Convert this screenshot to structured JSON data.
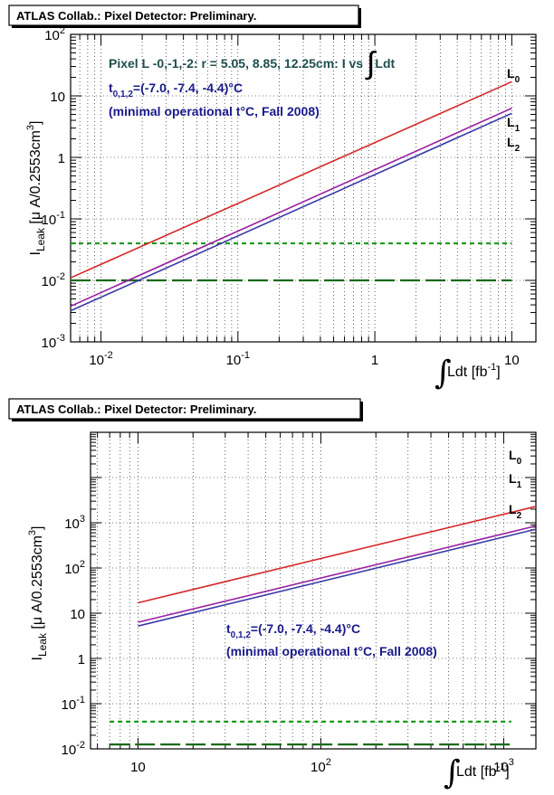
{
  "chart_data": [
    {
      "type": "line",
      "title": "ATLAS Collab.: Pixel Detector: Preliminary.",
      "annotation_line1": "Pixel L -0,-1,-2: r = 5.05, 8.85, 12.25cm: I vs",
      "annotation_line1_tail": "Ldt",
      "annotation_t_main": "t",
      "annotation_t_sub": "0,1,2",
      "annotation_t_rest": "=(-7.0, -7.4, -4.4)°C",
      "annotation_line3": "(minimal operational t°C, Fall 2008)",
      "ylabel_main": "I",
      "ylabel_sub": "Leak",
      "ylabel_rest": " [μ A/0.2553cm",
      "ylabel_sup": "3",
      "ylabel_close": "]",
      "xlabel_main": "Ldt [fb",
      "xlabel_sup": "-1",
      "xlabel_close": "]",
      "xscale": "log",
      "yscale": "log",
      "xlim": [
        0.006,
        15
      ],
      "ylim": [
        0.001,
        100
      ],
      "grid": true,
      "x_ticks": [
        {
          "value": 0.01,
          "base": "10",
          "exp": "-2"
        },
        {
          "value": 0.1,
          "base": "10",
          "exp": "-1"
        },
        {
          "value": 1,
          "base": "1",
          "exp": ""
        },
        {
          "value": 10,
          "base": "10",
          "exp": ""
        }
      ],
      "y_ticks": [
        {
          "value": 0.001,
          "base": "10",
          "exp": "-3"
        },
        {
          "value": 0.01,
          "base": "10",
          "exp": "-2"
        },
        {
          "value": 0.1,
          "base": "10",
          "exp": "-1"
        },
        {
          "value": 1,
          "base": "1",
          "exp": ""
        },
        {
          "value": 10,
          "base": "10",
          "exp": ""
        },
        {
          "value": 100,
          "base": "10",
          "exp": "2"
        }
      ],
      "series": [
        {
          "name": "L0",
          "label_main": "L",
          "label_sub": "0",
          "color": "#d62728",
          "x": [
            0.006,
            10
          ],
          "y": [
            0.011,
            17
          ]
        },
        {
          "name": "L1",
          "label_main": "L",
          "label_sub": "1",
          "color": "#9b1fa0",
          "x": [
            0.006,
            10
          ],
          "y": [
            0.0038,
            6.3
          ]
        },
        {
          "name": "L2",
          "label_main": "L",
          "label_sub": "2",
          "color": "#3a3aa8",
          "x": [
            0.006,
            10
          ],
          "y": [
            0.0032,
            5.2
          ]
        }
      ],
      "hlines": [
        {
          "y": 0.04,
          "color": "#1a9a1a",
          "style": "short-dash",
          "x": [
            0.006,
            10
          ]
        },
        {
          "y": 0.01,
          "color": "#1a6b1a",
          "style": "long-dash",
          "x": [
            0.006,
            10
          ]
        }
      ]
    },
    {
      "type": "line",
      "title": "ATLAS Collab.: Pixel Detector: Preliminary.",
      "annotation_t_main": "t",
      "annotation_t_sub": "0,1,2",
      "annotation_t_rest": "=(-7.0, -7.4, -4.4)°C",
      "annotation_line3": "(minimal operational t°C, Fall 2008)",
      "ylabel_main": "I",
      "ylabel_sub": "Leak",
      "ylabel_rest": " [μ A/0.2553cm",
      "ylabel_sup": "3",
      "ylabel_close": "]",
      "xlabel_main": "Ldt [fb",
      "xlabel_sup": "-1",
      "xlabel_close": "]",
      "xscale": "log",
      "yscale": "log",
      "xlim": [
        5.5,
        1500
      ],
      "ylim": [
        0.01,
        100000
      ],
      "grid": true,
      "x_ticks": [
        {
          "value": 10,
          "base": "10",
          "exp": ""
        },
        {
          "value": 100,
          "base": "10",
          "exp": "2"
        },
        {
          "value": 1000,
          "base": "10",
          "exp": "3"
        }
      ],
      "y_ticks": [
        {
          "value": 0.01,
          "base": "10",
          "exp": "-2"
        },
        {
          "value": 0.1,
          "base": "10",
          "exp": "-1"
        },
        {
          "value": 1,
          "base": "1",
          "exp": ""
        },
        {
          "value": 10,
          "base": "10",
          "exp": ""
        },
        {
          "value": 100,
          "base": "10",
          "exp": "2"
        },
        {
          "value": 1000,
          "base": "10",
          "exp": "3"
        }
      ],
      "series": [
        {
          "name": "L0",
          "label_main": "L",
          "label_sub": "0",
          "color": "#d62728",
          "x": [
            10,
            1500
          ],
          "y": [
            17,
            2300
          ]
        },
        {
          "name": "L1",
          "label_main": "L",
          "label_sub": "1",
          "color": "#9b1fa0",
          "x": [
            10,
            1500
          ],
          "y": [
            6.3,
            850
          ]
        },
        {
          "name": "L2",
          "label_main": "L",
          "label_sub": "2",
          "color": "#3a3aa8",
          "x": [
            10,
            1500
          ],
          "y": [
            5.2,
            720
          ]
        }
      ],
      "hlines": [
        {
          "y": 0.04,
          "color": "#1a9a1a",
          "style": "short-dash",
          "x": [
            7,
            1100
          ]
        },
        {
          "y": 0.0125,
          "color": "#1a6b1a",
          "style": "long-dash",
          "x": [
            7,
            1100
          ]
        }
      ]
    }
  ]
}
